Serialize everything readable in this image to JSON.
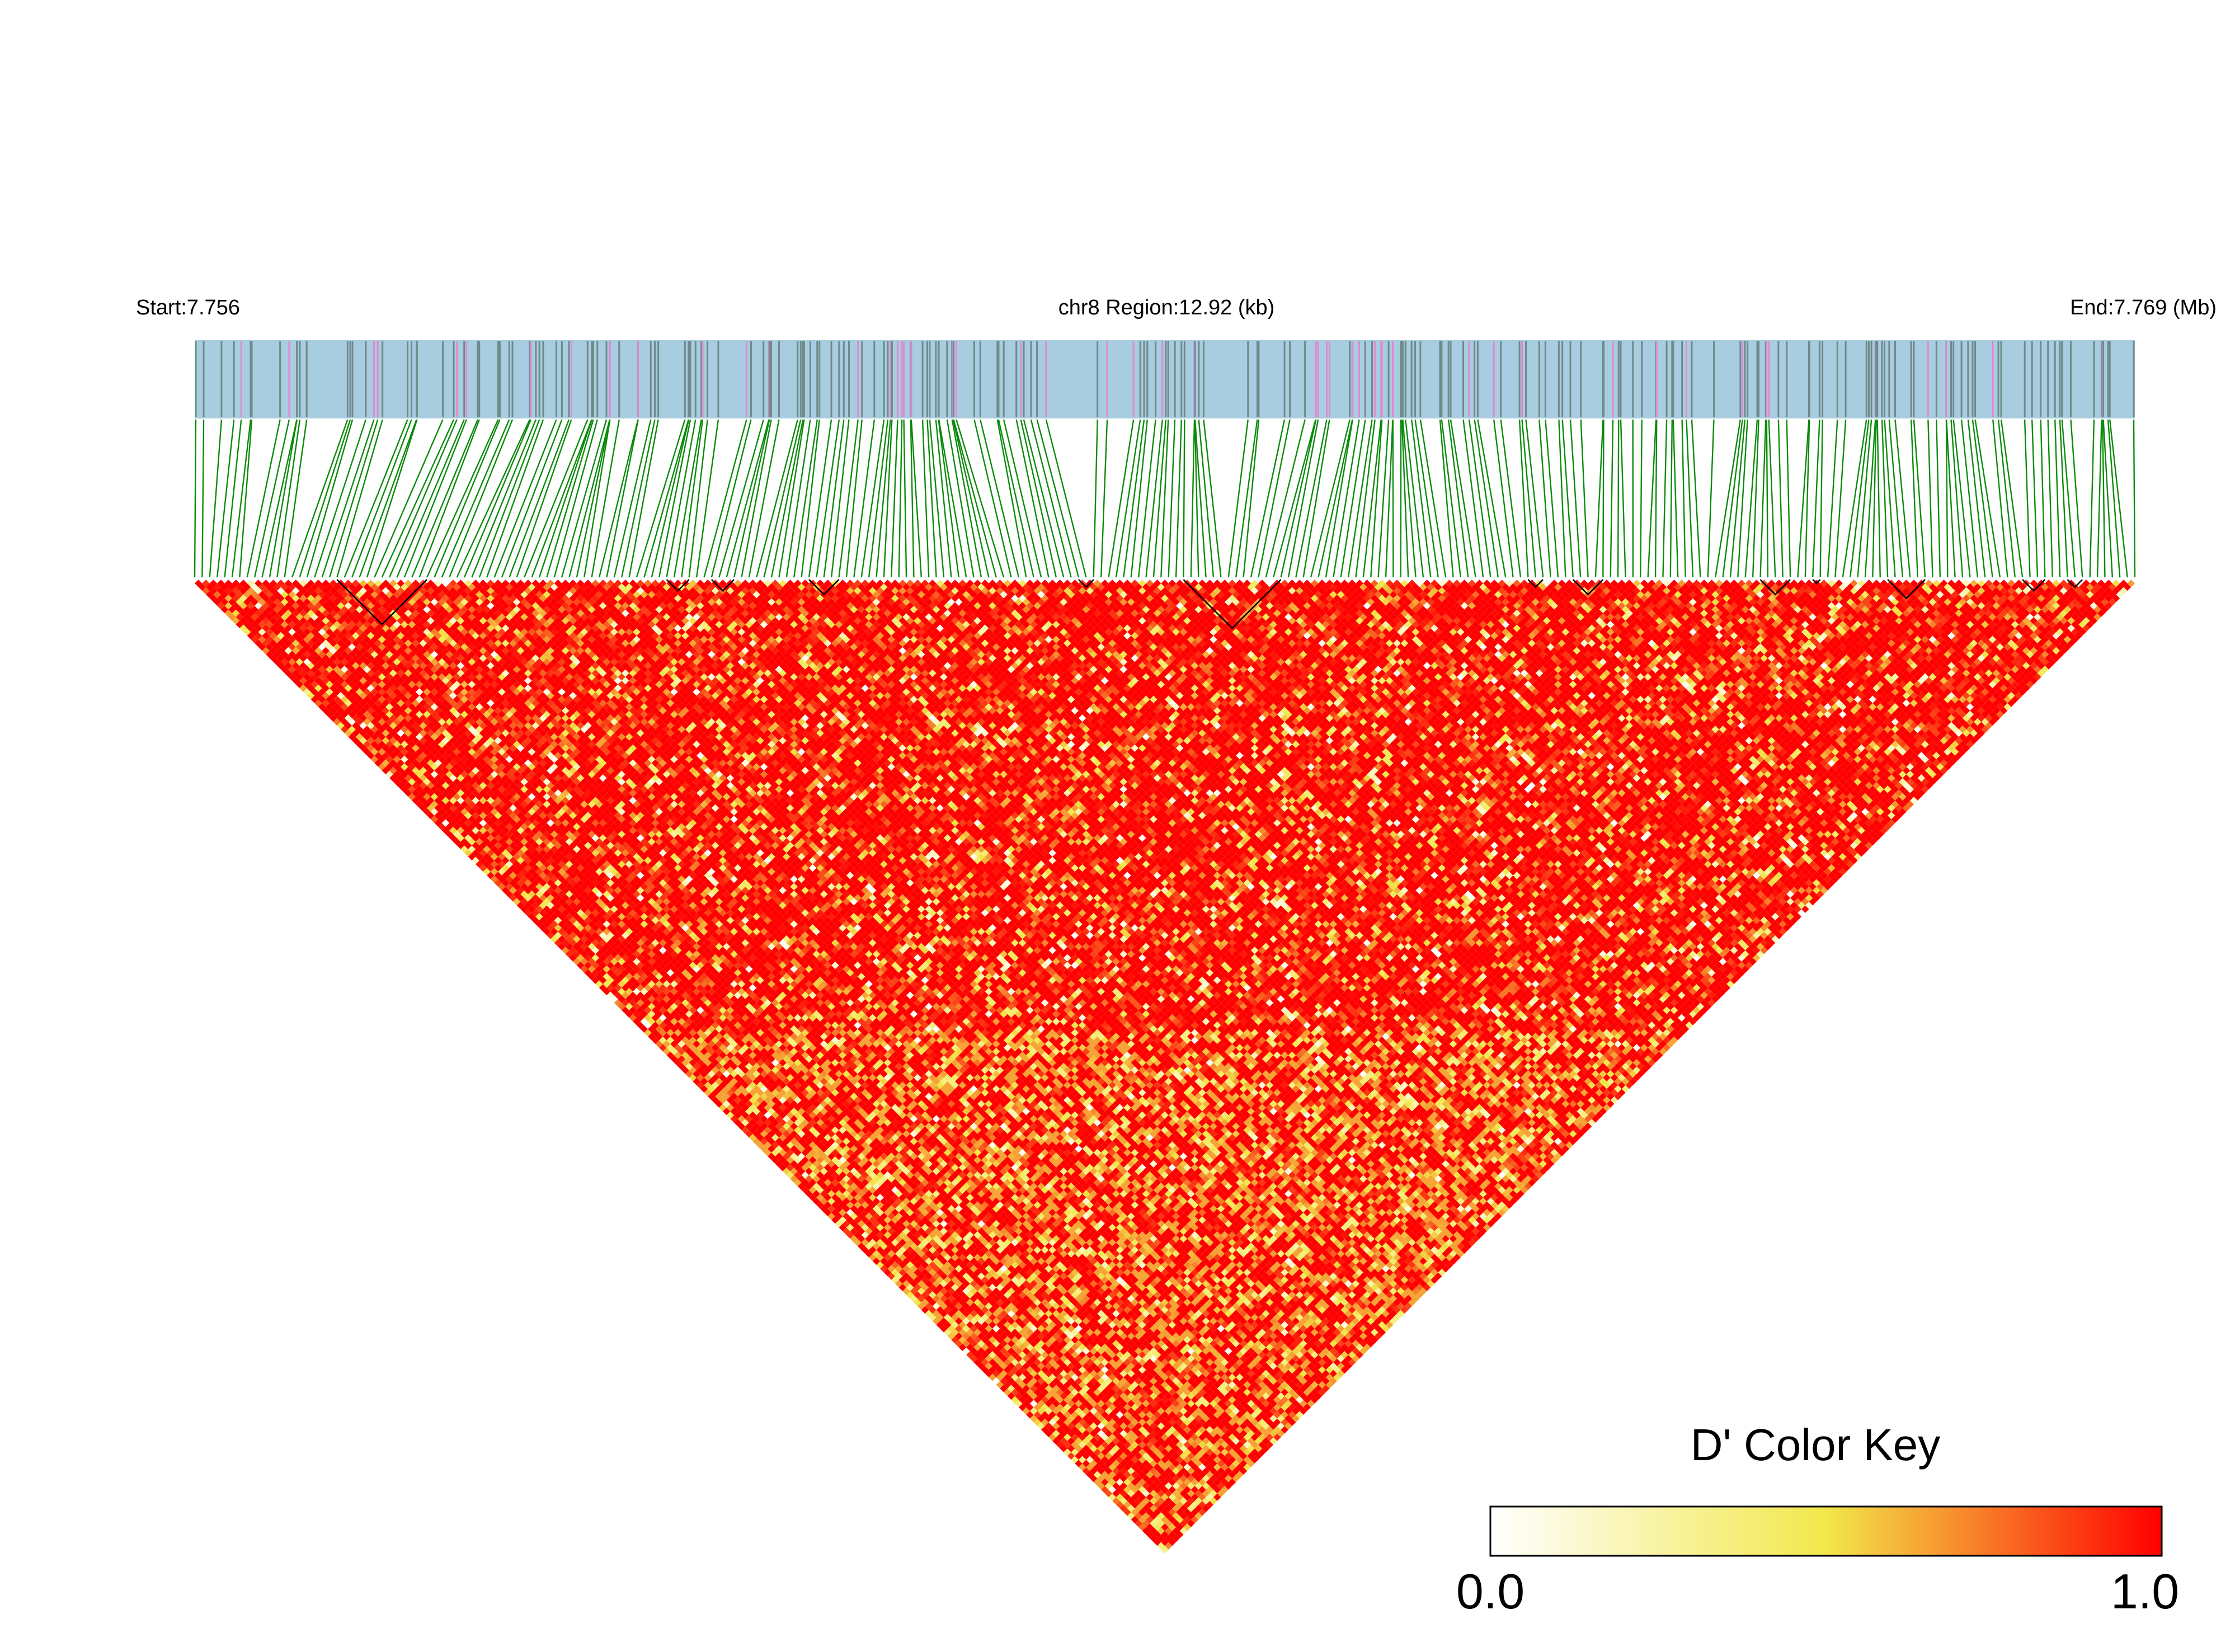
{
  "header": {
    "start_label": "Start:7.756",
    "region_label": "chr8 Region:12.92 (kb)",
    "end_label": "End:7.769 (Mb)"
  },
  "color_key": {
    "title": "D' Color Key",
    "min_label": "0.0",
    "max_label": "1.0",
    "stops": [
      "#ffffff",
      "#f2e84a",
      "#ff0000"
    ]
  },
  "chart_data": {
    "type": "heatmap",
    "title": "",
    "chromosome": "chr8",
    "start_mb": 7.756,
    "end_mb": 7.769,
    "region_kb": 12.92,
    "snp_count": 260,
    "value_range": [
      0,
      1
    ],
    "dominant_value": "high D' (mostly 0.8-1.0)",
    "colors": {
      "track_background": "#a8cce0",
      "variant_mark": "#6f8a8a",
      "highlight_mark": "#e08ad0",
      "connector": "#0a8a0a",
      "block_outline": "#000000"
    }
  }
}
